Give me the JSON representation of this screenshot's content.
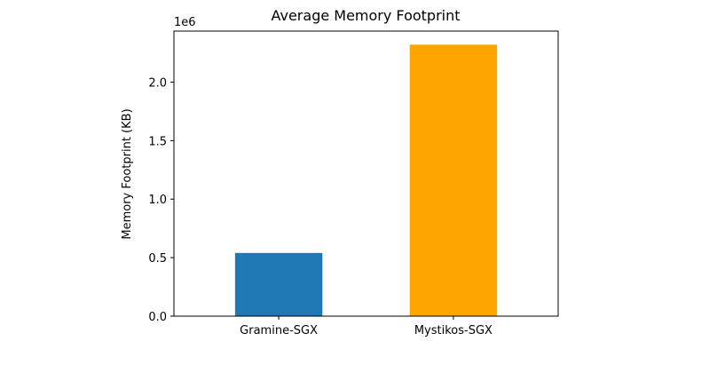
{
  "chart_data": {
    "type": "bar",
    "title": "Average Memory Footprint",
    "xlabel": "",
    "ylabel": "Memory Footprint (KB)",
    "categories": [
      "Gramine-SGX",
      "Mystikos-SGX"
    ],
    "values": [
      540000,
      2320000
    ],
    "colors": [
      "#1f77b4",
      "#ffa500"
    ],
    "ylim": [
      0,
      2436000
    ],
    "y_scale_factor": 1000000,
    "y_offset_label": "1e6",
    "y_ticks": [
      0,
      500000,
      1000000,
      1500000,
      2000000
    ],
    "y_tick_labels": [
      "0.0",
      "0.5",
      "1.0",
      "1.5",
      "2.0"
    ],
    "grid": false,
    "legend": "none"
  }
}
